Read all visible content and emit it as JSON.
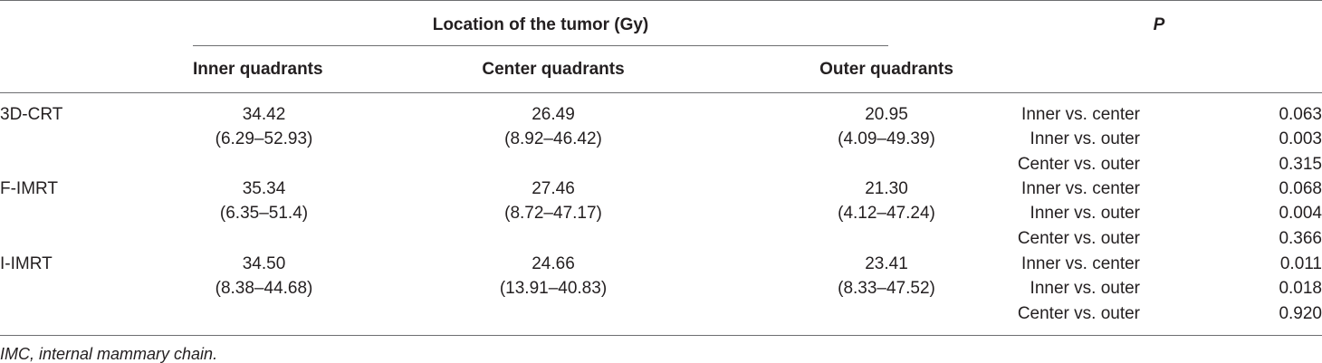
{
  "table": {
    "group_header": "Location of the tumor (Gy)",
    "p_header": "P",
    "columns": [
      "Inner quadrants",
      "Center quadrants",
      "Outer quadrants"
    ],
    "rows": [
      {
        "label": "3D-CRT",
        "inner": {
          "median": "34.42",
          "range": "(6.29–52.93)"
        },
        "center": {
          "median": "26.49",
          "range": "(8.92–46.42)"
        },
        "outer": {
          "median": "20.95",
          "range": "(4.09–49.39)"
        },
        "comparisons": [
          {
            "label": "Inner vs. center",
            "p": "0.063"
          },
          {
            "label": "Inner vs. outer",
            "p": "0.003"
          },
          {
            "label": "Center vs. outer",
            "p": "0.315"
          }
        ]
      },
      {
        "label": "F-IMRT",
        "inner": {
          "median": "35.34",
          "range": "(6.35–51.4)"
        },
        "center": {
          "median": "27.46",
          "range": "(8.72–47.17)"
        },
        "outer": {
          "median": "21.30",
          "range": "(4.12–47.24)"
        },
        "comparisons": [
          {
            "label": "Inner vs. center",
            "p": "0.068"
          },
          {
            "label": "Inner vs. outer",
            "p": "0.004"
          },
          {
            "label": "Center vs. outer",
            "p": "0.366"
          }
        ]
      },
      {
        "label": "I-IMRT",
        "inner": {
          "median": "34.50",
          "range": "(8.38–44.68)"
        },
        "center": {
          "median": "24.66",
          "range": "(13.91–40.83)"
        },
        "outer": {
          "median": "23.41",
          "range": "(8.33–47.52)"
        },
        "comparisons": [
          {
            "label": "Inner vs. center",
            "p": "0.011"
          },
          {
            "label": "Inner vs. outer",
            "p": "0.018"
          },
          {
            "label": "Center vs. outer",
            "p": "0.920"
          }
        ]
      }
    ]
  },
  "footnote": "IMC, internal mammary chain."
}
